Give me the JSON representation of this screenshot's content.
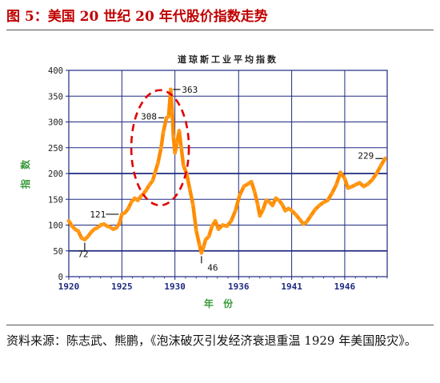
{
  "figure": {
    "title": "图 5：美国 20 世纪 20 年代股价指数走势",
    "source": "资料来源：陈志武、熊鹏，《泡沫破灭引发经济衰退重温 1929 年美国股灾》。"
  },
  "colors": {
    "title": "#c00000",
    "series": "#ff8c00",
    "axis": "#1f2a80",
    "grid": "#1f2a80",
    "label_green": "#3a9a3a",
    "annotation_red": "#e00000"
  },
  "chart_data": {
    "type": "line",
    "title": "道琼斯工业平均指数",
    "xlabel": "年 份",
    "ylabel": "指 数",
    "xlim": [
      1920,
      1950
    ],
    "ylim": [
      0,
      400
    ],
    "x_ticks": [
      "1920",
      "1925",
      "1930",
      "1936",
      "1941",
      "1946"
    ],
    "y_ticks": [
      "0",
      "50",
      "100",
      "150",
      "200",
      "250",
      "300",
      "350",
      "400"
    ],
    "grid": "horizontal at 50,100,...,350; vertical at each x tick",
    "emphasized_gridlines": [
      50,
      200
    ],
    "series": [
      {
        "x": [
          1920.0,
          1920.3,
          1920.6,
          1920.9,
          1921.2,
          1921.5,
          1921.8,
          1922.1,
          1922.4,
          1922.7,
          1923.0,
          1923.3,
          1923.6,
          1923.9,
          1924.2,
          1924.5,
          1924.8,
          1925.0,
          1925.3,
          1925.6,
          1925.9,
          1926.2,
          1926.5,
          1926.8,
          1927.0,
          1927.3,
          1927.6,
          1927.9,
          1928.1,
          1928.4,
          1928.7,
          1928.9,
          1929.2,
          1929.4,
          1929.6,
          1929.75,
          1929.85,
          1930.0,
          1930.2,
          1930.4,
          1930.6,
          1930.8,
          1931.1,
          1931.4,
          1931.7,
          1932.0,
          1932.3,
          1932.5,
          1932.7,
          1932.9,
          1933.2,
          1933.5,
          1933.8,
          1934.1,
          1934.5,
          1934.9,
          1935.3,
          1935.7,
          1936.1,
          1936.5,
          1936.9,
          1937.2,
          1937.5,
          1937.8,
          1938.0,
          1938.3,
          1938.6,
          1938.9,
          1939.2,
          1939.5,
          1939.8,
          1940.1,
          1940.4,
          1940.7,
          1941.0,
          1941.4,
          1941.8,
          1942.1,
          1942.4,
          1942.8,
          1943.2,
          1943.6,
          1944.0,
          1944.4,
          1944.8,
          1945.2,
          1945.6,
          1946.0,
          1946.3,
          1946.6,
          1947.0,
          1947.4,
          1947.8,
          1948.2,
          1948.6,
          1949.0,
          1949.4,
          1949.8
        ],
        "values": [
          108,
          98,
          92,
          88,
          75,
          72,
          78,
          86,
          92,
          95,
          100,
          102,
          98,
          96,
          92,
          95,
          105,
          121,
          124,
          132,
          145,
          152,
          148,
          156,
          160,
          168,
          178,
          186,
          200,
          220,
          250,
          280,
          308,
          310,
          363,
          320,
          272,
          240,
          260,
          283,
          250,
          215,
          200,
          170,
          140,
          90,
          62,
          46,
          58,
          72,
          78,
          98,
          108,
          92,
          100,
          98,
          108,
          128,
          158,
          175,
          180,
          184,
          165,
          140,
          118,
          130,
          148,
          145,
          138,
          152,
          148,
          140,
          128,
          132,
          128,
          120,
          110,
          102,
          106,
          118,
          130,
          138,
          144,
          148,
          162,
          178,
          202,
          190,
          172,
          174,
          178,
          182,
          175,
          180,
          188,
          200,
          215,
          229
        ]
      }
    ],
    "annotations": [
      {
        "label": "72",
        "x": 1921.5,
        "y": 72
      },
      {
        "label": "121",
        "x": 1925.0,
        "y": 121
      },
      {
        "label": "308",
        "x": 1929.2,
        "y": 308
      },
      {
        "label": "363",
        "x": 1929.6,
        "y": 363
      },
      {
        "label": "46",
        "x": 1932.5,
        "y": 46
      },
      {
        "label": "229",
        "x": 1949.8,
        "y": 229
      }
    ]
  }
}
